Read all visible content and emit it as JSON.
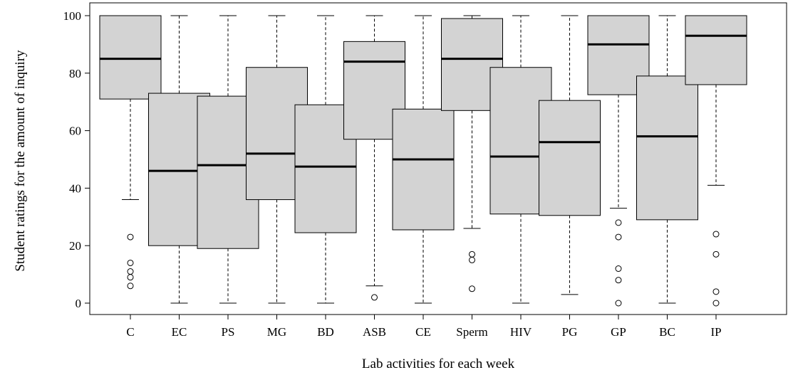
{
  "chart_data": {
    "type": "boxplot",
    "xlabel": "Lab activities for each week",
    "ylabel": "Student ratings for the amount of inquiry",
    "ylim": [
      0,
      100
    ],
    "yticks": [
      0,
      20,
      40,
      60,
      80,
      100
    ],
    "grid": false,
    "categories": [
      "C",
      "EC",
      "PS",
      "MG",
      "BD",
      "ASB",
      "CE",
      "Sperm",
      "HIV",
      "PG",
      "GP",
      "BC",
      "IP"
    ],
    "boxes": [
      {
        "category": "C",
        "whisker_low": 36,
        "q1": 71,
        "median": 85,
        "q3": 100,
        "whisker_high": 100,
        "outliers": [
          23,
          14,
          11,
          9,
          6
        ]
      },
      {
        "category": "EC",
        "whisker_low": 0,
        "q1": 20,
        "median": 46,
        "q3": 73,
        "whisker_high": 100,
        "outliers": []
      },
      {
        "category": "PS",
        "whisker_low": 0,
        "q1": 19,
        "median": 48,
        "q3": 72,
        "whisker_high": 100,
        "outliers": []
      },
      {
        "category": "MG",
        "whisker_low": 0,
        "q1": 36,
        "median": 52,
        "q3": 82,
        "whisker_high": 100,
        "outliers": []
      },
      {
        "category": "BD",
        "whisker_low": 0,
        "q1": 24.5,
        "median": 47.5,
        "q3": 69,
        "whisker_high": 100,
        "outliers": []
      },
      {
        "category": "ASB",
        "whisker_low": 6,
        "q1": 57,
        "median": 84,
        "q3": 91,
        "whisker_high": 100,
        "outliers": [
          2
        ]
      },
      {
        "category": "CE",
        "whisker_low": 0,
        "q1": 25.5,
        "median": 50,
        "q3": 67.5,
        "whisker_high": 100,
        "outliers": []
      },
      {
        "category": "Sperm",
        "whisker_low": 26,
        "q1": 67,
        "median": 85,
        "q3": 99,
        "whisker_high": 100,
        "outliers": [
          17,
          15,
          5
        ]
      },
      {
        "category": "HIV",
        "whisker_low": 0,
        "q1": 31,
        "median": 51,
        "q3": 82,
        "whisker_high": 100,
        "outliers": []
      },
      {
        "category": "PG",
        "whisker_low": 3,
        "q1": 30.5,
        "median": 56,
        "q3": 70.5,
        "whisker_high": 100,
        "outliers": []
      },
      {
        "category": "GP",
        "whisker_low": 33,
        "q1": 72.5,
        "median": 90,
        "q3": 100,
        "whisker_high": 100,
        "outliers": [
          28,
          23,
          12,
          8,
          0
        ]
      },
      {
        "category": "BC",
        "whisker_low": 0,
        "q1": 29,
        "median": 58,
        "q3": 79,
        "whisker_high": 100,
        "outliers": []
      },
      {
        "category": "IP",
        "whisker_low": 41,
        "q1": 76,
        "median": 93,
        "q3": 100,
        "whisker_high": 100,
        "outliers": [
          24,
          17,
          4,
          0
        ]
      }
    ]
  }
}
